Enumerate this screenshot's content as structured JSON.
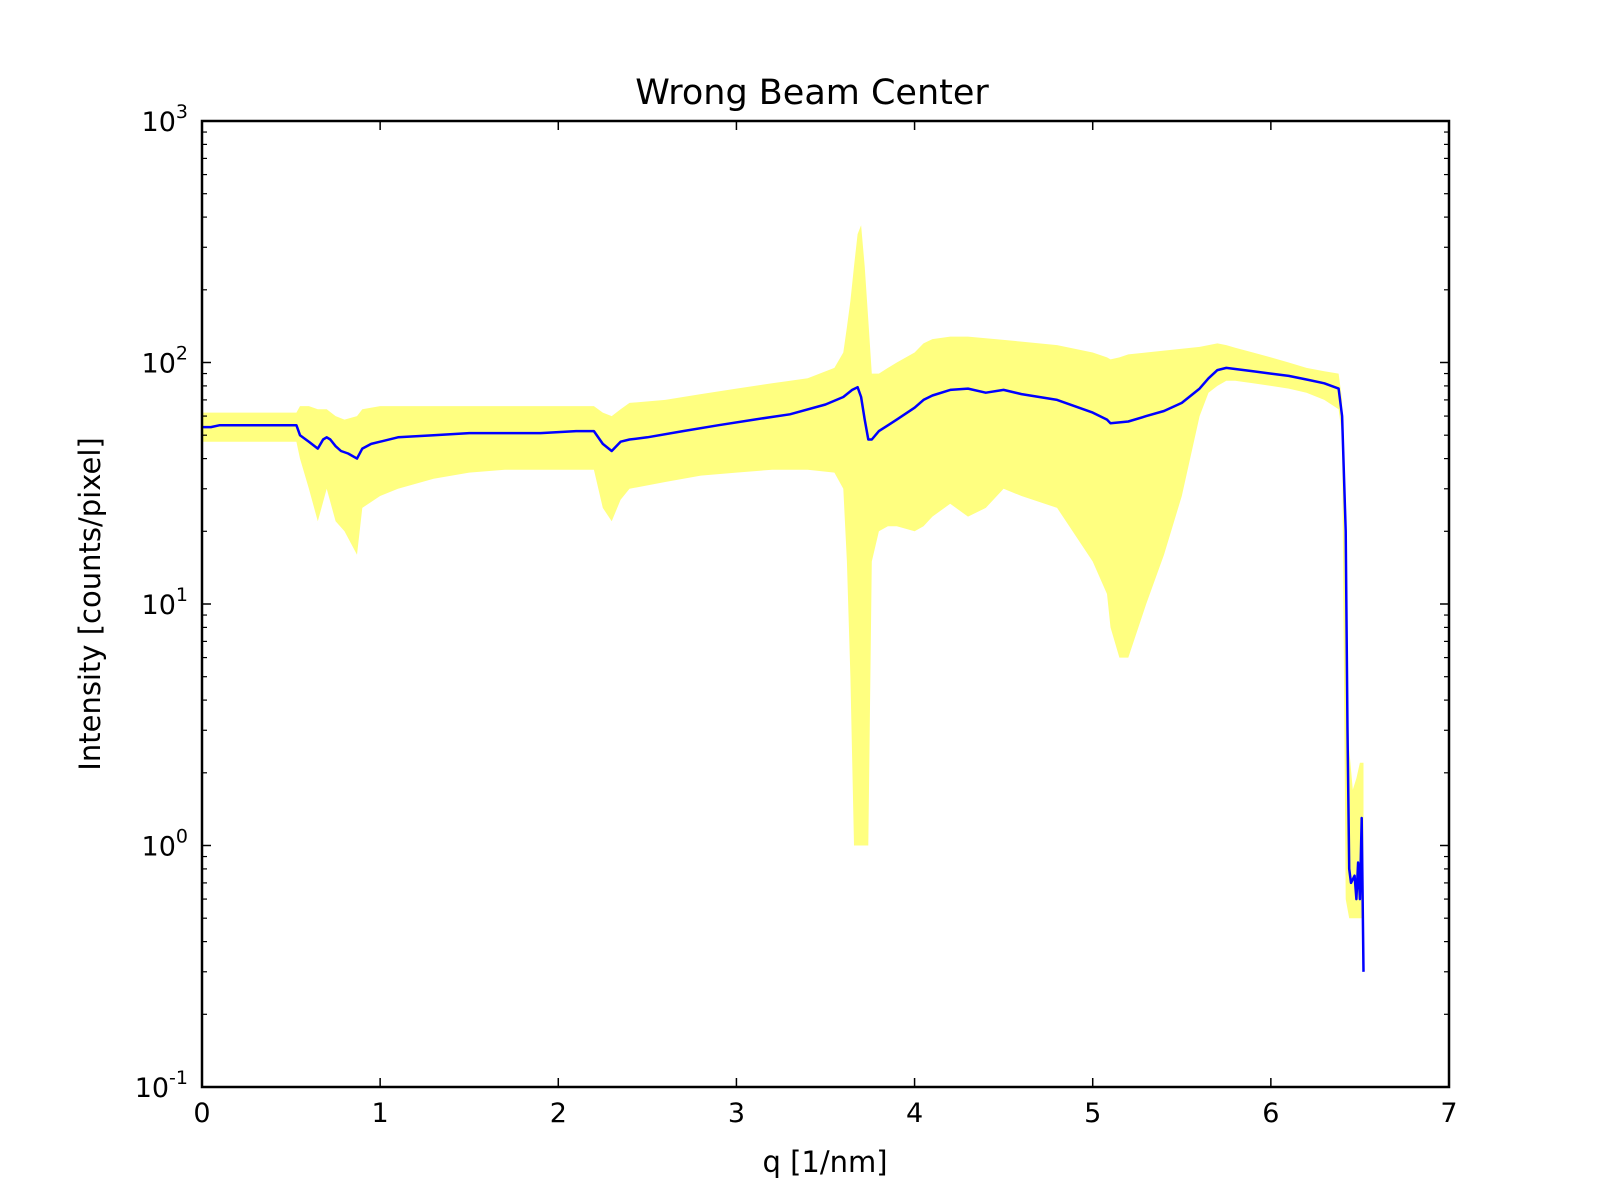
{
  "chart_data": {
    "type": "line",
    "title": "Wrong Beam Center",
    "xlabel": "q [1/nm]",
    "ylabel": "Intensity [counts/pixel]",
    "xlim": [
      0,
      7
    ],
    "ylim": [
      0.1,
      1000
    ],
    "yscale": "log",
    "grid": false,
    "x_ticks": [
      0,
      1,
      2,
      3,
      4,
      5,
      6,
      7
    ],
    "x_tick_labels": [
      "0",
      "1",
      "2",
      "3",
      "4",
      "5",
      "6",
      "7"
    ],
    "y_ticks": [
      0.1,
      1,
      10,
      100,
      1000
    ],
    "y_tick_labels": [
      {
        "base": "10",
        "exp": "-1"
      },
      {
        "base": "10",
        "exp": "0"
      },
      {
        "base": "10",
        "exp": "1"
      },
      {
        "base": "10",
        "exp": "2"
      },
      {
        "base": "10",
        "exp": "3"
      }
    ],
    "series": [
      {
        "color": "#0000ff",
        "x": [
          0,
          0.05,
          0.1,
          0.2,
          0.3,
          0.4,
          0.5,
          0.53,
          0.55,
          0.6,
          0.65,
          0.68,
          0.7,
          0.72,
          0.75,
          0.78,
          0.82,
          0.87,
          0.9,
          0.95,
          1.0,
          1.1,
          1.3,
          1.5,
          1.7,
          1.9,
          2.1,
          2.2,
          2.25,
          2.3,
          2.35,
          2.4,
          2.5,
          2.7,
          2.9,
          3.1,
          3.3,
          3.5,
          3.6,
          3.65,
          3.68,
          3.7,
          3.72,
          3.74,
          3.76,
          3.8,
          3.9,
          4.0,
          4.05,
          4.1,
          4.2,
          4.3,
          4.4,
          4.5,
          4.6,
          4.8,
          5.0,
          5.08,
          5.1,
          5.2,
          5.3,
          5.4,
          5.5,
          5.6,
          5.65,
          5.7,
          5.75,
          5.8,
          5.9,
          6.0,
          6.1,
          6.2,
          6.3,
          6.38,
          6.4,
          6.42,
          6.43,
          6.44,
          6.45,
          6.47,
          6.48,
          6.49,
          6.5,
          6.51,
          6.52
        ],
        "y": [
          54,
          54,
          55,
          55,
          55,
          55,
          55,
          55,
          50,
          47,
          44,
          48,
          49,
          48,
          45,
          43,
          42,
          40,
          44,
          46,
          47,
          49,
          50,
          51,
          51,
          51,
          52,
          52,
          46,
          43,
          47,
          48,
          49,
          52,
          55,
          58,
          61,
          67,
          72,
          77,
          79,
          72,
          58,
          48,
          48,
          52,
          58,
          65,
          70,
          73,
          77,
          78,
          75,
          77,
          74,
          70,
          62,
          58,
          56,
          57,
          60,
          63,
          68,
          78,
          86,
          93,
          95,
          94,
          92,
          90,
          88,
          85,
          82,
          78,
          60,
          20,
          3,
          0.8,
          0.7,
          0.75,
          0.6,
          0.85,
          0.6,
          1.3,
          0.3
        ]
      }
    ],
    "band": {
      "color": "#ffff80",
      "x": [
        0,
        0.1,
        0.3,
        0.5,
        0.53,
        0.55,
        0.6,
        0.65,
        0.7,
        0.75,
        0.8,
        0.87,
        0.9,
        1.0,
        1.1,
        1.3,
        1.5,
        1.7,
        1.9,
        2.1,
        2.2,
        2.25,
        2.3,
        2.35,
        2.4,
        2.6,
        2.8,
        3.0,
        3.2,
        3.4,
        3.55,
        3.6,
        3.62,
        3.64,
        3.66,
        3.68,
        3.7,
        3.72,
        3.74,
        3.76,
        3.8,
        3.85,
        3.9,
        4.0,
        4.05,
        4.1,
        4.2,
        4.3,
        4.4,
        4.5,
        4.6,
        4.8,
        5.0,
        5.08,
        5.1,
        5.15,
        5.2,
        5.3,
        5.4,
        5.5,
        5.6,
        5.65,
        5.7,
        5.75,
        5.8,
        5.9,
        6.0,
        6.1,
        6.2,
        6.3,
        6.38,
        6.4,
        6.42,
        6.44,
        6.46,
        6.48,
        6.5,
        6.52
      ],
      "upper": [
        62,
        62,
        62,
        62,
        62,
        66,
        66,
        64,
        64,
        60,
        58,
        60,
        64,
        66,
        66,
        66,
        66,
        66,
        66,
        66,
        66,
        62,
        60,
        64,
        68,
        70,
        74,
        78,
        82,
        86,
        95,
        110,
        140,
        180,
        250,
        340,
        370,
        250,
        150,
        90,
        90,
        95,
        100,
        110,
        120,
        125,
        128,
        128,
        126,
        124,
        122,
        118,
        110,
        105,
        103,
        105,
        108,
        110,
        112,
        114,
        116,
        118,
        120,
        118,
        115,
        110,
        105,
        100,
        95,
        92,
        90,
        70,
        8,
        2.5,
        1.7,
        1.9,
        2.2,
        2.2
      ],
      "lower": [
        47,
        47,
        47,
        47,
        47,
        40,
        30,
        22,
        30,
        22,
        20,
        16,
        25,
        28,
        30,
        33,
        35,
        36,
        36,
        36,
        36,
        25,
        22,
        27,
        30,
        32,
        34,
        35,
        36,
        36,
        35,
        30,
        15,
        5,
        1,
        1,
        1,
        1,
        1,
        15,
        20,
        21,
        21,
        20,
        21,
        23,
        26,
        23,
        25,
        30,
        28,
        25,
        15,
        11,
        8,
        6,
        6,
        10,
        16,
        28,
        60,
        75,
        80,
        84,
        84,
        82,
        80,
        78,
        75,
        70,
        64,
        50,
        0.6,
        0.5,
        0.5,
        0.5,
        0.5,
        0.5
      ]
    }
  }
}
